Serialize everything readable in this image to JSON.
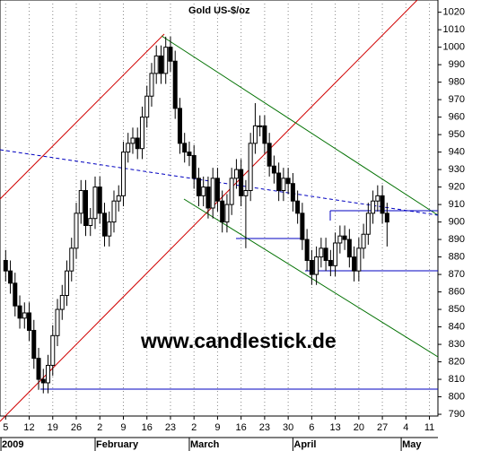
{
  "chart_data": {
    "type": "candlestick",
    "title": "Gold US-$/oz",
    "watermark": "www.candlestick.de",
    "up_color": "#ffffff",
    "down_color": "#000000",
    "grid": true,
    "ylim": [
      789,
      1027
    ],
    "yticks": [
      790,
      800,
      810,
      820,
      830,
      840,
      850,
      860,
      870,
      880,
      890,
      900,
      910,
      920,
      930,
      940,
      950,
      960,
      970,
      980,
      990,
      1000,
      1010,
      1020
    ],
    "xlim": [
      -1.2,
      91.8
    ],
    "xticks": [
      {
        "value": 0,
        "label": "5"
      },
      {
        "value": 5,
        "label": "12"
      },
      {
        "value": 10,
        "label": "19"
      },
      {
        "value": 15,
        "label": "26"
      },
      {
        "value": 20,
        "label": "2"
      },
      {
        "value": 25,
        "label": "9"
      },
      {
        "value": 30,
        "label": "16"
      },
      {
        "value": 35,
        "label": "23"
      },
      {
        "value": 40,
        "label": "2"
      },
      {
        "value": 45,
        "label": "9"
      },
      {
        "value": 50,
        "label": "16"
      },
      {
        "value": 55,
        "label": "23"
      },
      {
        "value": 60,
        "label": "30"
      },
      {
        "value": 65,
        "label": "6"
      },
      {
        "value": 70,
        "label": "13"
      },
      {
        "value": 75,
        "label": "20"
      },
      {
        "value": 80,
        "label": "27"
      },
      {
        "value": 85,
        "label": "4"
      },
      {
        "value": 90,
        "label": "11"
      }
    ],
    "month_labels": [
      {
        "value": -1,
        "label": "2009"
      },
      {
        "value": 19,
        "label": "February"
      },
      {
        "value": 39,
        "label": "March"
      },
      {
        "value": 61,
        "label": "April"
      },
      {
        "value": 84,
        "label": "May"
      }
    ],
    "open": [
      878,
      872,
      865,
      852,
      845,
      848,
      838,
      822,
      810,
      808,
      818,
      835,
      850,
      858,
      872,
      885,
      905,
      918,
      898,
      902,
      920,
      905,
      892,
      900,
      912,
      915,
      940,
      945,
      948,
      942,
      960,
      972,
      985,
      995,
      985,
      1000,
      992,
      965,
      945,
      940,
      938,
      925,
      915,
      920,
      908,
      925,
      912,
      900,
      910,
      925,
      930,
      915,
      918,
      945,
      955,
      955,
      945,
      932,
      928,
      918,
      925,
      922,
      912,
      905,
      890,
      878,
      870,
      880,
      885,
      878,
      875,
      888,
      892,
      890,
      880,
      872,
      885,
      893,
      905,
      912,
      915,
      905
    ],
    "high": [
      884,
      878,
      871,
      858,
      854,
      854,
      844,
      828,
      816,
      824,
      841,
      856,
      864,
      878,
      891,
      911,
      924,
      924,
      908,
      926,
      926,
      911,
      906,
      918,
      921,
      946,
      951,
      954,
      954,
      966,
      978,
      991,
      1001,
      1001,
      1006,
      1006,
      998,
      971,
      951,
      946,
      944,
      931,
      926,
      926,
      931,
      931,
      918,
      916,
      931,
      936,
      936,
      924,
      951,
      968,
      961,
      961,
      951,
      938,
      934,
      931,
      931,
      928,
      918,
      911,
      896,
      884,
      886,
      891,
      891,
      884,
      894,
      898,
      898,
      896,
      886,
      891,
      899,
      911,
      918,
      921,
      921,
      911
    ],
    "low": [
      866,
      859,
      846,
      839,
      839,
      832,
      816,
      804,
      802,
      802,
      812,
      829,
      844,
      852,
      866,
      879,
      899,
      892,
      892,
      896,
      899,
      886,
      886,
      894,
      906,
      909,
      934,
      939,
      936,
      936,
      954,
      966,
      979,
      979,
      979,
      986,
      959,
      939,
      934,
      932,
      919,
      909,
      909,
      902,
      902,
      906,
      894,
      894,
      904,
      919,
      909,
      885,
      912,
      939,
      949,
      939,
      926,
      922,
      912,
      912,
      916,
      906,
      899,
      884,
      872,
      864,
      864,
      874,
      872,
      869,
      869,
      882,
      884,
      874,
      866,
      866,
      879,
      887,
      899,
      906,
      899,
      886
    ],
    "close": [
      872,
      865,
      852,
      845,
      848,
      838,
      822,
      810,
      808,
      818,
      835,
      850,
      858,
      872,
      885,
      905,
      918,
      898,
      902,
      920,
      905,
      892,
      900,
      912,
      915,
      940,
      945,
      948,
      942,
      960,
      972,
      985,
      995,
      985,
      1000,
      992,
      965,
      945,
      940,
      938,
      925,
      915,
      920,
      908,
      925,
      912,
      900,
      910,
      925,
      930,
      915,
      918,
      945,
      955,
      955,
      945,
      932,
      928,
      918,
      925,
      922,
      912,
      905,
      890,
      878,
      870,
      880,
      885,
      878,
      875,
      888,
      892,
      890,
      880,
      872,
      885,
      893,
      905,
      912,
      915,
      905,
      900
    ]
  }
}
